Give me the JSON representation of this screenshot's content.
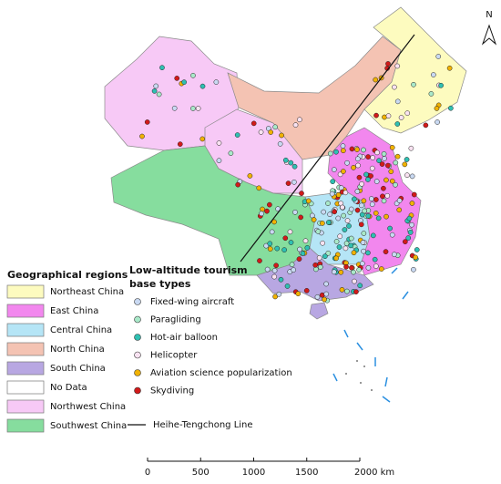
{
  "north": "N",
  "regions_legend": {
    "title": "Geographical regions",
    "items": [
      {
        "label": "Northeast China",
        "color": "#fdfbbf"
      },
      {
        "label": "East China",
        "color": "#f287ee"
      },
      {
        "label": "Central China",
        "color": "#b5e5f6"
      },
      {
        "label": "North China",
        "color": "#f4c3b3"
      },
      {
        "label": "South China",
        "color": "#b8a7e2"
      },
      {
        "label": "No Data",
        "color": "#ffffff"
      },
      {
        "label": "Northwest China",
        "color": "#f7c9f6"
      },
      {
        "label": "Southwest China",
        "color": "#86dd9e"
      }
    ]
  },
  "types_legend": {
    "title_lines": [
      "Low-altitude tourism",
      "base types"
    ],
    "items": [
      {
        "label": "Fixed-wing aircraft",
        "color": "#c9d9f2"
      },
      {
        "label": "Paragliding",
        "color": "#a9e9c9"
      },
      {
        "label": "Hot-air balloon",
        "color": "#2fc0b2"
      },
      {
        "label": "Helicopter",
        "color": "#f9e2f1"
      },
      {
        "label": "Aviation science popularization",
        "color": "#f1b203"
      },
      {
        "label": "Skydiving",
        "color": "#d11a1a"
      }
    ],
    "line_label": "Heihe-Tengchong Line"
  },
  "scale_bar": {
    "labels": [
      "0",
      "500",
      "1000",
      "1500",
      "2000 km"
    ]
  }
}
